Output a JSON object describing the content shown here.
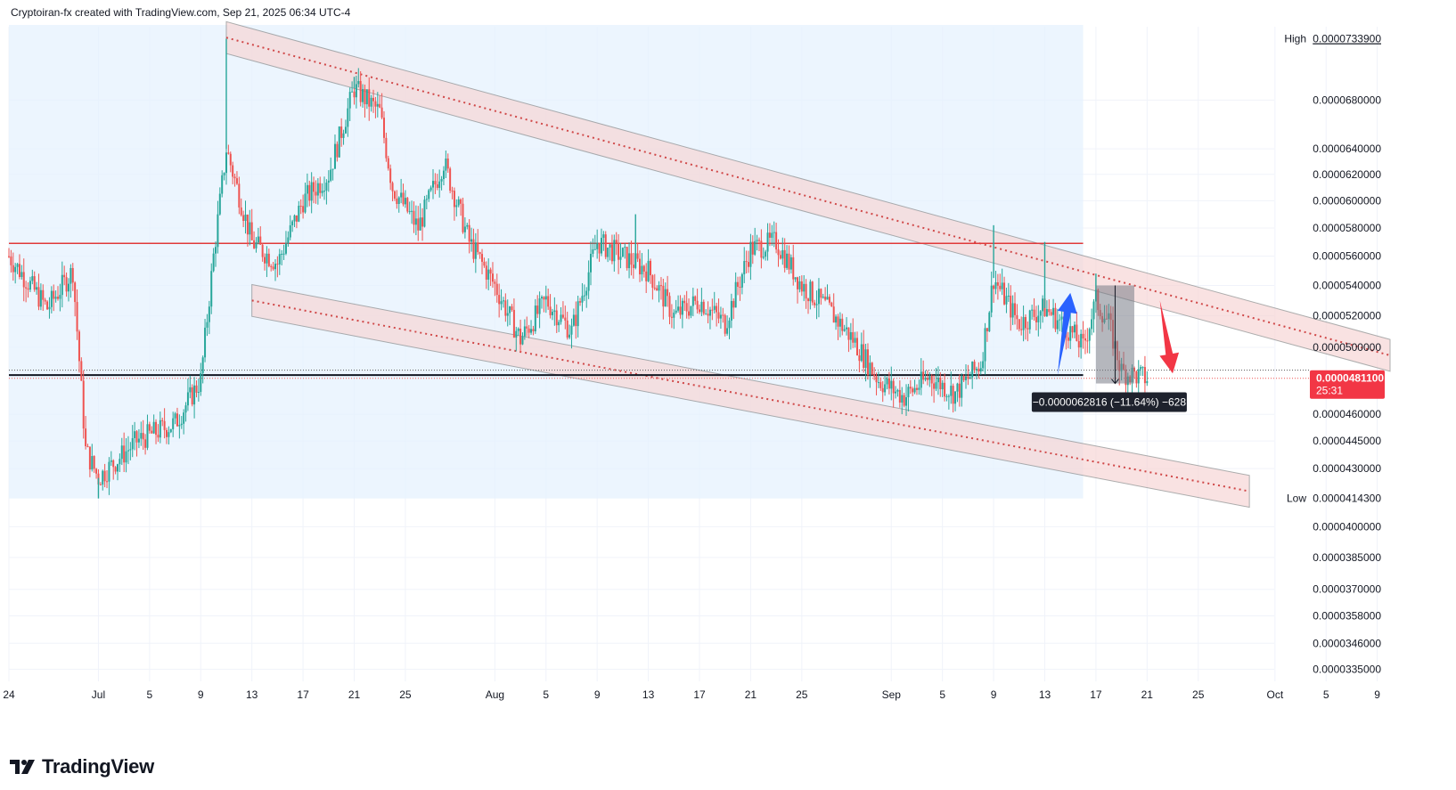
{
  "header": {
    "text": "Cryptoiran-fx created with TradingView.com, Sep 21, 2025 06:34 UTC-4"
  },
  "brand": {
    "name": "TradingView",
    "logo_icon": "tradingview-logo-icon"
  },
  "colors": {
    "up": "#26a69a",
    "down": "#ef5350",
    "resistance": "#e03a3a",
    "support": "#131722",
    "channel_fill": "#f7d6d6",
    "arrow_up": "#2962ff",
    "arrow_down": "#f23645",
    "badge_bg": "#f23645",
    "zone_bg": "#e6f2fd"
  },
  "chart_data": {
    "type": "candlestick",
    "title": "",
    "y_axis": {
      "scale": "log",
      "ticks": [
        "0.0000680000",
        "0.0000640000",
        "0.0000620000",
        "0.0000600000",
        "0.0000580000",
        "0.0000560000",
        "0.0000540000",
        "0.0000520000",
        "0.0000500000",
        "0.0000460000",
        "0.0000445000",
        "0.0000430000",
        "0.0000400000",
        "0.0000385000",
        "0.0000370000",
        "0.0000358000",
        "0.0000346000",
        "0.0000335000"
      ],
      "range": [
        3.3e-05,
        7.45e-05
      ]
    },
    "x_axis": {
      "ticks": [
        "24",
        "Jul",
        "5",
        "9",
        "13",
        "17",
        "21",
        "25",
        "Aug",
        "5",
        "9",
        "13",
        "17",
        "21",
        "25",
        "Sep",
        "5",
        "9",
        "13",
        "17",
        "21",
        "25",
        "Oct",
        "5",
        "9"
      ],
      "range": [
        "2025-06-24",
        "2025-10-10"
      ]
    },
    "high": {
      "label": "High",
      "value": "0.0000733900"
    },
    "low": {
      "label": "Low",
      "value": "0.0000414300"
    },
    "last_price": {
      "value": "0.0000481100",
      "countdown": "25:31"
    },
    "close_path": [
      [
        "2025-06-24",
        5.6e-05
      ],
      [
        "2025-06-27",
        5.25e-05
      ],
      [
        "2025-06-29",
        5.5e-05
      ],
      [
        "2025-06-30",
        4.4e-05
      ],
      [
        "2025-07-01",
        4.25e-05
      ],
      [
        "2025-07-04",
        4.45e-05
      ],
      [
        "2025-07-07",
        4.55e-05
      ],
      [
        "2025-07-09",
        4.8e-05
      ],
      [
        "2025-07-10",
        5.6e-05
      ],
      [
        "2025-07-11",
        6.4e-05
      ],
      [
        "2025-07-13",
        5.7e-05
      ],
      [
        "2025-07-15",
        5.55e-05
      ],
      [
        "2025-07-17",
        6e-05
      ],
      [
        "2025-07-19",
        6.2e-05
      ],
      [
        "2025-07-21",
        6.9e-05
      ],
      [
        "2025-07-23",
        6.7e-05
      ],
      [
        "2025-07-24",
        6.1e-05
      ],
      [
        "2025-07-26",
        5.8e-05
      ],
      [
        "2025-07-28",
        6.3e-05
      ],
      [
        "2025-07-30",
        5.7e-05
      ],
      [
        "2025-08-01",
        5.4e-05
      ],
      [
        "2025-08-03",
        5.05e-05
      ],
      [
        "2025-08-05",
        5.3e-05
      ],
      [
        "2025-08-07",
        5.1e-05
      ],
      [
        "2025-08-09",
        5.7e-05
      ],
      [
        "2025-08-11",
        5.6e-05
      ],
      [
        "2025-08-13",
        5.5e-05
      ],
      [
        "2025-08-15",
        5.2e-05
      ],
      [
        "2025-08-17",
        5.3e-05
      ],
      [
        "2025-08-19",
        5.15e-05
      ],
      [
        "2025-08-21",
        5.65e-05
      ],
      [
        "2025-08-23",
        5.7e-05
      ],
      [
        "2025-08-25",
        5.4e-05
      ],
      [
        "2025-08-27",
        5.25e-05
      ],
      [
        "2025-08-29",
        5.05e-05
      ],
      [
        "2025-08-31",
        4.8e-05
      ],
      [
        "2025-09-02",
        4.7e-05
      ],
      [
        "2025-09-04",
        4.82e-05
      ],
      [
        "2025-09-06",
        4.72e-05
      ],
      [
        "2025-09-08",
        4.9e-05
      ],
      [
        "2025-09-09",
        5.45e-05
      ],
      [
        "2025-09-11",
        5.15e-05
      ],
      [
        "2025-09-13",
        5.25e-05
      ],
      [
        "2025-09-15",
        5.1e-05
      ],
      [
        "2025-09-16",
        5e-05
      ],
      [
        "2025-09-17",
        5.3e-05
      ],
      [
        "2025-09-18",
        5.15e-05
      ],
      [
        "2025-09-19",
        4.85e-05
      ],
      [
        "2025-09-21",
        4.81e-05
      ]
    ],
    "wicks": [
      {
        "x": "2025-07-11",
        "high": 7.339e-05
      },
      {
        "x": "2025-07-21",
        "high": 7e-05
      },
      {
        "x": "2025-07-01",
        "low": 4.143e-05
      },
      {
        "x": "2025-09-09",
        "high": 5.82e-05
      },
      {
        "x": "2025-09-13",
        "high": 5.7e-05
      },
      {
        "x": "2025-08-12",
        "high": 5.9e-05
      },
      {
        "x": "2025-09-17",
        "high": 5.48e-05
      }
    ],
    "horizontal_lines": [
      {
        "name": "resistance",
        "value": 5.69e-05,
        "from": "2025-06-24",
        "to": "2025-09-16"
      },
      {
        "name": "support",
        "value": 4.83e-05,
        "from": "2025-06-24",
        "to": "2025-09-16"
      }
    ],
    "channel_upper": {
      "from": [
        "2025-07-11",
        7.35e-05
      ],
      "to": [
        "2025-10-10",
        4.95e-05
      ],
      "band": 0.02
    },
    "channel_lower": {
      "from": [
        "2025-07-13",
        5.3e-05
      ],
      "to": [
        "2025-09-29",
        4.18e-05
      ],
      "band": 0.02
    },
    "shaded_zone": {
      "from": "2025-06-24",
      "to": "2025-09-16",
      "low": 4.143e-05,
      "high": 7.45e-05
    },
    "measure": {
      "from": "2025-09-17",
      "to": "2025-09-20",
      "high": 5.4e-05,
      "low": 4.78e-05,
      "label": "−0.0000062816 (−11.64%) −628"
    },
    "arrows": [
      {
        "direction": "up",
        "from": [
          "2025-09-14",
          4.83e-05
        ],
        "to": [
          "2025-09-15",
          5.35e-05
        ]
      },
      {
        "direction": "down",
        "from": [
          "2025-09-22",
          5.3e-05
        ],
        "to": [
          "2025-09-23",
          4.84e-05
        ]
      }
    ],
    "grid": true
  }
}
